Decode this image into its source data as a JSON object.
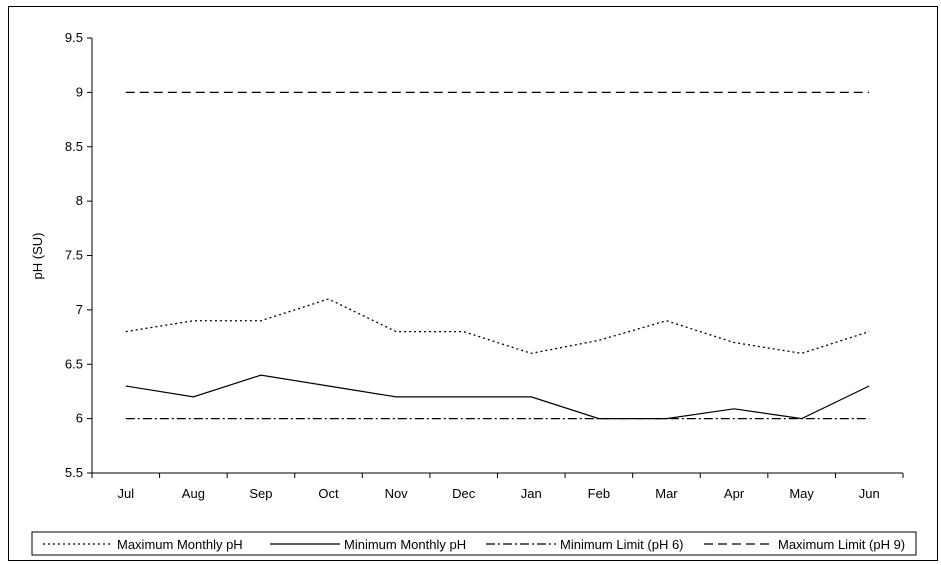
{
  "chart_data": {
    "type": "line",
    "title": "",
    "xlabel": "",
    "ylabel": "pH (SU)",
    "ylim": [
      5.5,
      9.5
    ],
    "yticks": [
      "5.5",
      "6",
      "6.5",
      "7",
      "7.5",
      "8",
      "8.5",
      "9",
      "9.5"
    ],
    "categories": [
      "Jul",
      "Aug",
      "Sep",
      "Oct",
      "Nov",
      "Dec",
      "Jan",
      "Feb",
      "Mar",
      "Apr",
      "May",
      "Jun"
    ],
    "grid": false,
    "legend_position": "bottom",
    "series": [
      {
        "name": "Maximum Monthly pH",
        "style": "dotted",
        "values": [
          6.8,
          6.9,
          6.9,
          7.1,
          6.8,
          6.8,
          6.6,
          6.72,
          6.9,
          6.7,
          6.6,
          6.8
        ]
      },
      {
        "name": "Minimum Monthly pH",
        "style": "solid",
        "values": [
          6.3,
          6.2,
          6.4,
          6.3,
          6.2,
          6.2,
          6.2,
          6.0,
          6.0,
          6.09,
          6.0,
          6.3
        ]
      },
      {
        "name": "Minimum Limit (pH 6)",
        "style": "dash-dot",
        "values": [
          6,
          6,
          6,
          6,
          6,
          6,
          6,
          6,
          6,
          6,
          6,
          6
        ]
      },
      {
        "name": "Maximum Limit (pH 9)",
        "style": "dashed",
        "values": [
          9,
          9,
          9,
          9,
          9,
          9,
          9,
          9,
          9,
          9,
          9,
          9
        ]
      }
    ]
  }
}
